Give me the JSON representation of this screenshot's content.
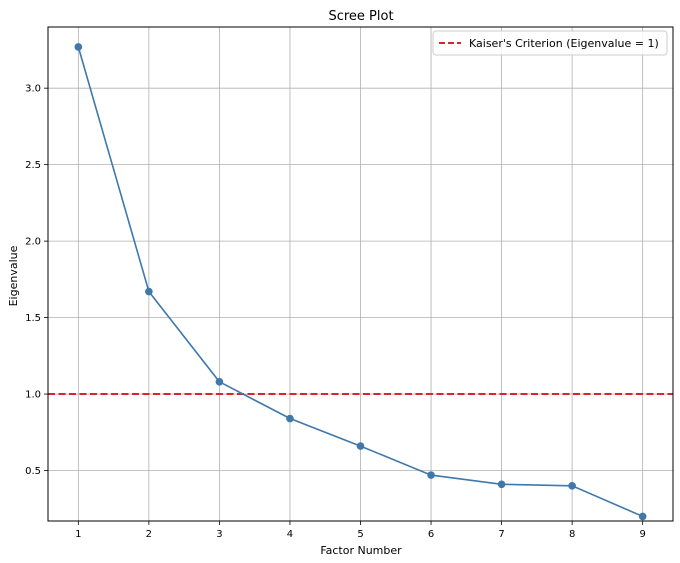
{
  "chart_data": {
    "type": "line",
    "title": "Scree Plot",
    "xlabel": "Factor Number",
    "ylabel": "Eigenvalue",
    "xlim": [
      0.57,
      9.43
    ],
    "ylim": [
      0.17,
      3.4
    ],
    "x_ticks": [
      1,
      2,
      3,
      4,
      5,
      6,
      7,
      8,
      9
    ],
    "y_ticks": [
      0.5,
      1.0,
      1.5,
      2.0,
      2.5,
      3.0
    ],
    "y_tick_labels": [
      "0.5",
      "1.0",
      "1.5",
      "2.0",
      "2.5",
      "3.0"
    ],
    "grid": true,
    "legend_position": "top-right",
    "series": [
      {
        "x": [
          1,
          2,
          3,
          4,
          5,
          6,
          7,
          8,
          9
        ],
        "values": [
          3.27,
          1.67,
          1.08,
          0.84,
          0.66,
          0.47,
          0.41,
          0.4,
          0.2
        ],
        "color": "#3f78ab",
        "marker": "circle"
      }
    ],
    "reference_lines": [
      {
        "name": "Kaiser's Criterion (Eigenvalue = 1)",
        "y": 1.0,
        "color": "#d62728",
        "style": "dashed"
      }
    ]
  }
}
